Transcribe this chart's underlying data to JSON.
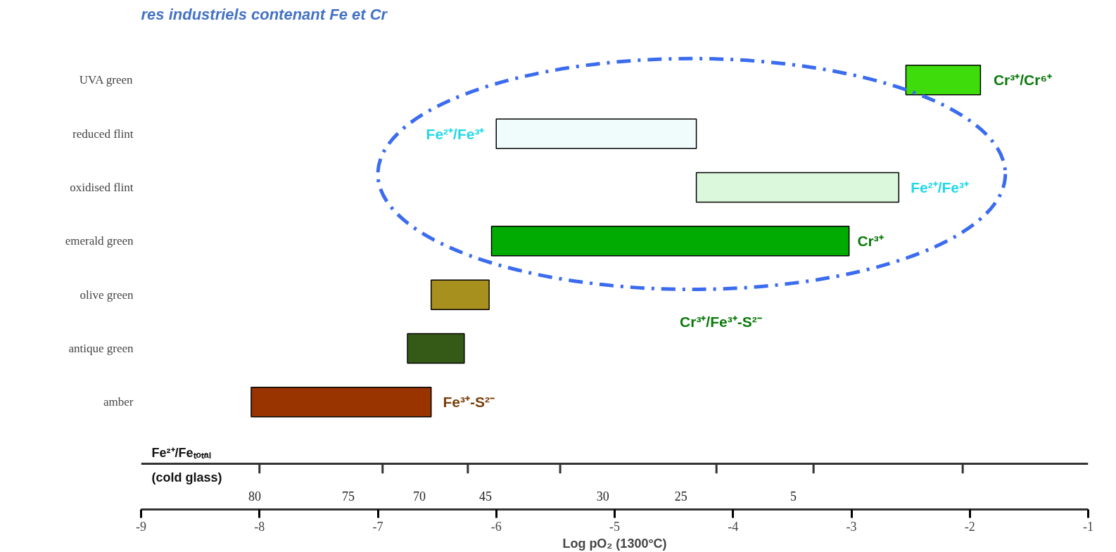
{
  "chart_data": {
    "type": "bar",
    "orientation": "horizontal",
    "title": "res industriels contenant Fe et Cr",
    "categories": [
      "UVA green",
      "reduced flint",
      "oxidised flint",
      "emerald green",
      "olive green",
      "antique green",
      "amber"
    ],
    "base": [
      -2.54,
      -6.0,
      -4.31,
      -6.04,
      -6.55,
      -6.75,
      -8.07
    ],
    "values": [
      0.63,
      1.69,
      1.71,
      3.02,
      0.49,
      0.48,
      1.52
    ],
    "colors": [
      "#3ddc0a",
      "#f0fbfb",
      "#dcf8dc",
      "#02ab02",
      "#a8901e",
      "#355a18",
      "#993300"
    ],
    "xlabel": "Log pO₂ (1300°C)",
    "xlim": [
      -9,
      -1
    ],
    "xticks": [
      -9,
      -8,
      -7,
      -6,
      -5,
      -4,
      -3,
      -2,
      -1
    ],
    "annotations": [
      "Cr³⁺/Cr⁶⁺",
      "Fe²⁺/Fe³⁺",
      "Fe²⁺/Fe³⁺",
      "Cr³⁺",
      "Cr³⁺/Fe³⁺-S²⁻",
      "Fe³⁺-S²⁻",
      "80",
      "75",
      "70",
      "45",
      "30",
      "25",
      "5",
      "Fe²⁺/Feₜₒₜₐₗ",
      "(cold glass)"
    ],
    "grid": false
  }
}
